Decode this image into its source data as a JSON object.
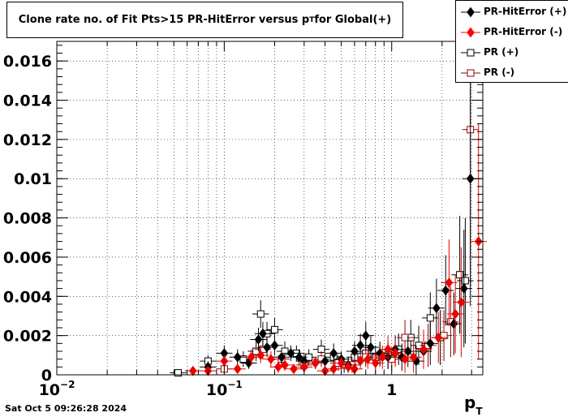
{
  "title": {
    "main": "Clone rate no. of Fit Pts>15 PR-HitError versus p",
    "sub": "T",
    "suffix": " for Global(+)"
  },
  "datestamp": "Sat Oct  5 09:26:28 2024",
  "legend": [
    {
      "label": "PR-HitError (+)",
      "color": "#000000",
      "marker": "diamond-filled"
    },
    {
      "label": "PR-HitError (-)",
      "color": "#ff0000",
      "marker": "diamond-filled"
    },
    {
      "label": "PR (+)",
      "color": "#000000",
      "marker": "square-open"
    },
    {
      "label": "PR (-)",
      "color": "#990000",
      "marker": "square-open"
    }
  ],
  "chart_data": {
    "type": "scatter",
    "xscale": "log",
    "xlim": [
      0.01,
      3.5
    ],
    "ylim": [
      0,
      0.017
    ],
    "grid": true,
    "legend_position": "top-right",
    "xlabel": "p",
    "xlabel_sub": "T",
    "ylabel": "",
    "x_tick_labels": [
      {
        "base": "10",
        "exp": "−2",
        "value": 0.01
      },
      {
        "base": "10",
        "exp": "−1",
        "value": 0.1
      },
      {
        "base": "1",
        "exp": "",
        "value": 1
      }
    ],
    "y_tick_labels": [
      "0",
      "0.002",
      "0.004",
      "0.006",
      "0.008",
      "0.01",
      "0.012",
      "0.014",
      "0.016"
    ],
    "y_tick_values": [
      0,
      0.002,
      0.004,
      0.006,
      0.008,
      0.01,
      0.012,
      0.014,
      0.016
    ],
    "series": [
      {
        "name": "PR-HitError (+)",
        "color": "#000000",
        "marker": "diamond-filled",
        "points": [
          [
            0.08,
            0.0004,
            0.0003
          ],
          [
            0.1,
            0.0011,
            0.0004
          ],
          [
            0.12,
            0.0009,
            0.0004
          ],
          [
            0.14,
            0.0006,
            0.0003
          ],
          [
            0.16,
            0.0018,
            0.0006
          ],
          [
            0.17,
            0.0021,
            0.0006
          ],
          [
            0.18,
            0.0014,
            0.0005
          ],
          [
            0.2,
            0.0015,
            0.0005
          ],
          [
            0.22,
            0.0009,
            0.0004
          ],
          [
            0.25,
            0.0011,
            0.0004
          ],
          [
            0.28,
            0.0009,
            0.0004
          ],
          [
            0.3,
            0.0007,
            0.0004
          ],
          [
            0.35,
            0.0006,
            0.0003
          ],
          [
            0.4,
            0.0007,
            0.0004
          ],
          [
            0.45,
            0.0011,
            0.0005
          ],
          [
            0.5,
            0.0008,
            0.0004
          ],
          [
            0.55,
            0.0005,
            0.0004
          ],
          [
            0.6,
            0.0012,
            0.0005
          ],
          [
            0.65,
            0.0015,
            0.0006
          ],
          [
            0.7,
            0.002,
            0.0007
          ],
          [
            0.75,
            0.0014,
            0.0006
          ],
          [
            0.85,
            0.0011,
            0.0006
          ],
          [
            0.95,
            0.0009,
            0.0006
          ],
          [
            1.05,
            0.0013,
            0.0007
          ],
          [
            1.15,
            0.0009,
            0.0007
          ],
          [
            1.25,
            0.0012,
            0.0008
          ],
          [
            1.4,
            0.0007,
            0.0008
          ],
          [
            1.55,
            0.0012,
            0.0009
          ],
          [
            1.7,
            0.0016,
            0.0011
          ],
          [
            1.85,
            0.0034,
            0.0015
          ],
          [
            2.1,
            0.0043,
            0.0018
          ],
          [
            2.35,
            0.0026,
            0.0016
          ],
          [
            2.7,
            0.0044,
            0.003
          ],
          [
            2.95,
            0.01,
            0.0065
          ]
        ]
      },
      {
        "name": "PR-HitError (-)",
        "color": "#ee0000",
        "marker": "diamond-filled",
        "points": [
          [
            0.065,
            0.0002,
            0.0002
          ],
          [
            0.08,
            0.0002,
            0.0002
          ],
          [
            0.1,
            0.0007,
            0.0003
          ],
          [
            0.12,
            0.0003,
            0.0002
          ],
          [
            0.145,
            0.0009,
            0.0004
          ],
          [
            0.165,
            0.001,
            0.0004
          ],
          [
            0.19,
            0.0008,
            0.0004
          ],
          [
            0.21,
            0.0004,
            0.0003
          ],
          [
            0.23,
            0.0005,
            0.0003
          ],
          [
            0.26,
            0.0003,
            0.0002
          ],
          [
            0.3,
            0.0004,
            0.0003
          ],
          [
            0.35,
            0.0006,
            0.0003
          ],
          [
            0.4,
            0.0002,
            0.0002
          ],
          [
            0.45,
            0.0003,
            0.0003
          ],
          [
            0.5,
            0.0006,
            0.0003
          ],
          [
            0.55,
            0.0004,
            0.0003
          ],
          [
            0.6,
            0.0003,
            0.0003
          ],
          [
            0.65,
            0.0007,
            0.0004
          ],
          [
            0.72,
            0.0008,
            0.0005
          ],
          [
            0.8,
            0.0006,
            0.0005
          ],
          [
            0.88,
            0.0009,
            0.0006
          ],
          [
            0.95,
            0.0013,
            0.0007
          ],
          [
            1.05,
            0.0011,
            0.0007
          ],
          [
            1.2,
            0.0008,
            0.0007
          ],
          [
            1.35,
            0.0009,
            0.0008
          ],
          [
            1.55,
            0.0013,
            0.001
          ],
          [
            1.9,
            0.0019,
            0.0013
          ],
          [
            2.2,
            0.0047,
            0.0022
          ],
          [
            2.4,
            0.0031,
            0.002
          ],
          [
            2.6,
            0.0037,
            0.0028
          ],
          [
            3.3,
            0.0068,
            0.006
          ]
        ]
      },
      {
        "name": "PR (+)",
        "color": "#000000",
        "marker": "square-open",
        "points": [
          [
            0.053,
            0.0001,
            0.0001
          ],
          [
            0.08,
            0.0007,
            0.0003
          ],
          [
            0.13,
            0.0008,
            0.0004
          ],
          [
            0.155,
            0.0012,
            0.0005
          ],
          [
            0.165,
            0.0031,
            0.0007
          ],
          [
            0.18,
            0.0021,
            0.0006
          ],
          [
            0.2,
            0.0023,
            0.0006
          ],
          [
            0.23,
            0.0012,
            0.0005
          ],
          [
            0.27,
            0.0011,
            0.0004
          ],
          [
            0.32,
            0.0009,
            0.0004
          ],
          [
            0.38,
            0.0013,
            0.0005
          ],
          [
            0.45,
            0.0009,
            0.0004
          ],
          [
            0.52,
            0.0005,
            0.0004
          ],
          [
            0.6,
            0.0009,
            0.0005
          ],
          [
            0.7,
            0.0011,
            0.0006
          ],
          [
            0.8,
            0.0009,
            0.0006
          ],
          [
            0.95,
            0.001,
            0.0007
          ],
          [
            1.1,
            0.0013,
            0.0008
          ],
          [
            1.3,
            0.0019,
            0.0009
          ],
          [
            1.45,
            0.0015,
            0.001
          ],
          [
            1.7,
            0.0029,
            0.0013
          ],
          [
            1.95,
            0.0019,
            0.0014
          ],
          [
            2.55,
            0.0051,
            0.003
          ],
          [
            2.75,
            0.0048,
            0.0032
          ]
        ]
      },
      {
        "name": "PR (-)",
        "color": "#990000",
        "marker": "square-open",
        "points": [
          [
            0.1,
            0.0003,
            0.0002
          ],
          [
            0.17,
            0.0013,
            0.0005
          ],
          [
            0.22,
            0.0008,
            0.0004
          ],
          [
            0.3,
            0.0005,
            0.0003
          ],
          [
            0.38,
            0.0008,
            0.0004
          ],
          [
            0.48,
            0.0006,
            0.0004
          ],
          [
            0.58,
            0.0005,
            0.0004
          ],
          [
            0.7,
            0.0009,
            0.0005
          ],
          [
            0.85,
            0.001,
            0.0006
          ],
          [
            1.0,
            0.0008,
            0.0006
          ],
          [
            1.2,
            0.0019,
            0.0009
          ],
          [
            1.65,
            0.0015,
            0.0011
          ],
          [
            2.05,
            0.002,
            0.0013
          ],
          [
            2.25,
            0.0027,
            0.0018
          ],
          [
            2.95,
            0.0125,
            0.008
          ]
        ]
      }
    ]
  }
}
